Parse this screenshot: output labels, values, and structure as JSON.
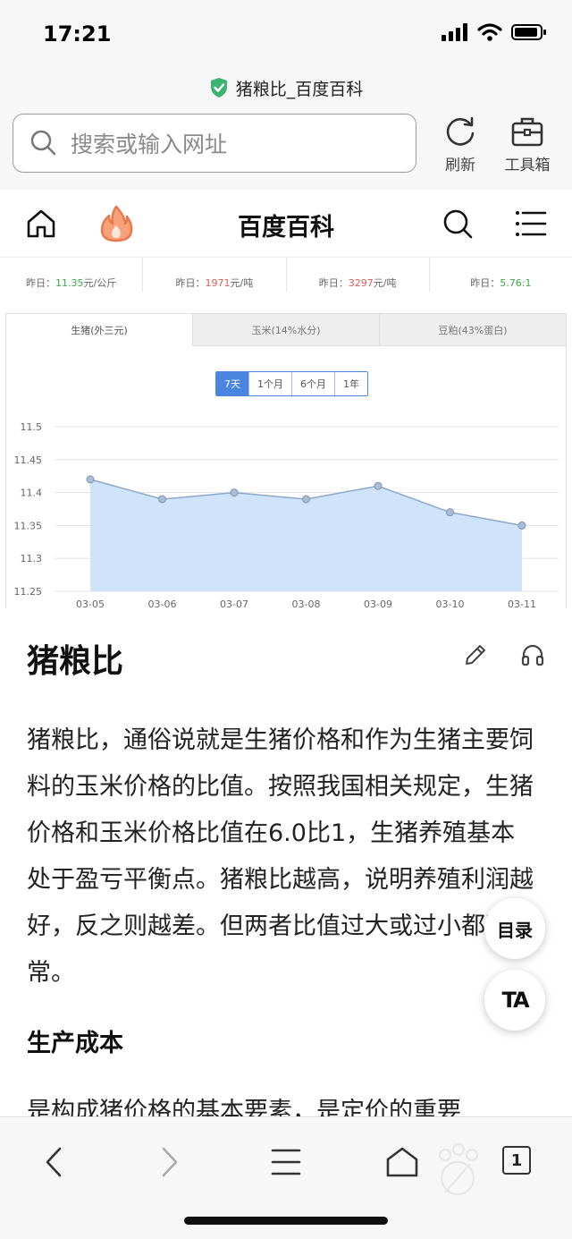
{
  "status_bar": {
    "time": "17:21"
  },
  "browser": {
    "site_title": "猪粮比_百度百科",
    "address_placeholder": "搜索或输入网址",
    "refresh_label": "刷新",
    "toolbox_label": "工具箱",
    "tab_count": "1"
  },
  "site_nav": {
    "logo_text": "百度百科"
  },
  "yesterday_row": [
    {
      "prefix": "昨日：",
      "value": "11.35",
      "unit": "元/公斤",
      "color": "#3aa84a"
    },
    {
      "prefix": "昨日：",
      "value": "1971",
      "unit": "元/吨",
      "color": "#e05a5a"
    },
    {
      "prefix": "昨日：",
      "value": "3297",
      "unit": "元/吨",
      "color": "#e05a5a"
    },
    {
      "prefix": "昨日：",
      "value": "5.76:1",
      "unit": "",
      "color": "#3aa84a"
    }
  ],
  "chart_tabs": [
    "生猪(外三元)",
    "玉米(14%水分)",
    "豆粕(43%蛋白)"
  ],
  "range_buttons": [
    "7天",
    "1个月",
    "6个月",
    "1年"
  ],
  "chart_data": {
    "type": "area",
    "x": [
      "03-05",
      "03-06",
      "03-07",
      "03-08",
      "03-09",
      "03-10",
      "03-11"
    ],
    "values": [
      11.42,
      11.39,
      11.4,
      11.39,
      11.41,
      11.37,
      11.35
    ],
    "y_ticks": [
      "11.5",
      "11.45",
      "11.4",
      "11.35",
      "11.3",
      "11.25"
    ],
    "ylim": [
      11.25,
      11.5
    ],
    "grid": true,
    "fill_color": "#cfe3fb",
    "line_color": "#8ca8c9"
  },
  "article": {
    "title": "猪粮比",
    "body": "猪粮比，通俗说就是生猪价格和作为生猪主要饲料的玉米价格的比值。按照我国相关规定，生猪价格和玉米价格比值在6.0比1，生猪养殖基本处于盈亏平衡点。猪粮比越高，说明养殖利润越好，反之则越差。但两者比值过大或过小都不正常。",
    "section_heading": "生产成本",
    "section_text": "是构成猪价格的基本要素，是定价的重要"
  },
  "float_buttons": {
    "toc": "目录",
    "ta": "TA"
  },
  "colors": {
    "accent_blue": "#4a86e0",
    "shield_green": "#3cb371"
  }
}
